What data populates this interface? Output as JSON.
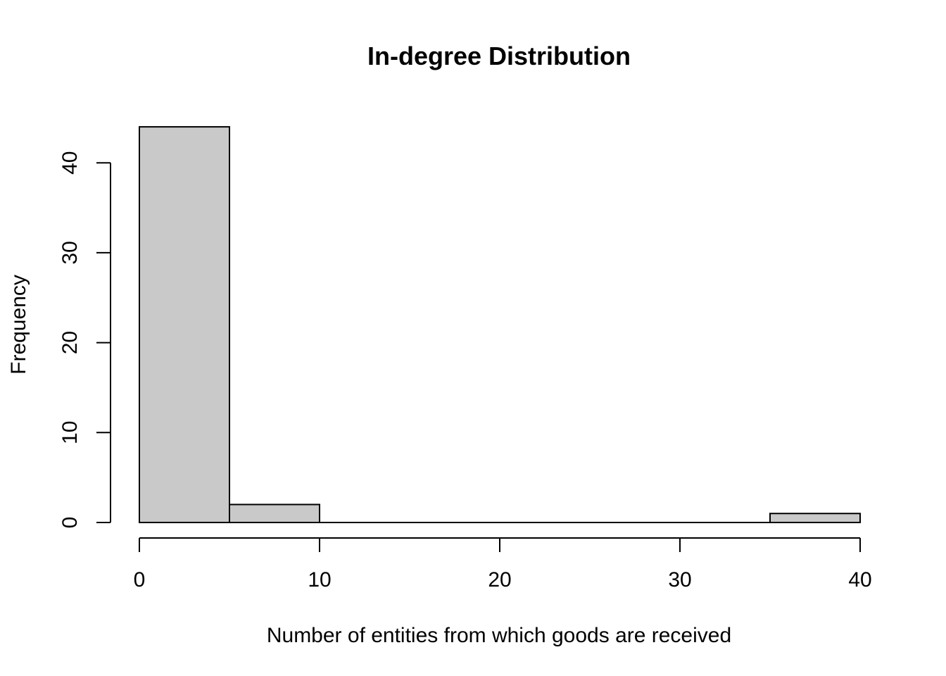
{
  "chart_data": {
    "type": "bar",
    "title": "In-degree Distribution",
    "xlabel": "Number of entities from which goods are received",
    "ylabel": "Frequency",
    "bins": [
      {
        "start": 0,
        "end": 5,
        "count": 44
      },
      {
        "start": 5,
        "end": 10,
        "count": 2
      },
      {
        "start": 10,
        "end": 15,
        "count": 0
      },
      {
        "start": 15,
        "end": 20,
        "count": 0
      },
      {
        "start": 20,
        "end": 25,
        "count": 0
      },
      {
        "start": 25,
        "end": 30,
        "count": 0
      },
      {
        "start": 30,
        "end": 35,
        "count": 0
      },
      {
        "start": 35,
        "end": 40,
        "count": 1
      }
    ],
    "xlim": [
      0,
      40
    ],
    "ylim": [
      0,
      44
    ],
    "xticks": [
      0,
      10,
      20,
      30,
      40
    ],
    "yticks": [
      0,
      10,
      20,
      30,
      40
    ],
    "bar_color": "#c9c9c9",
    "grid": false
  }
}
